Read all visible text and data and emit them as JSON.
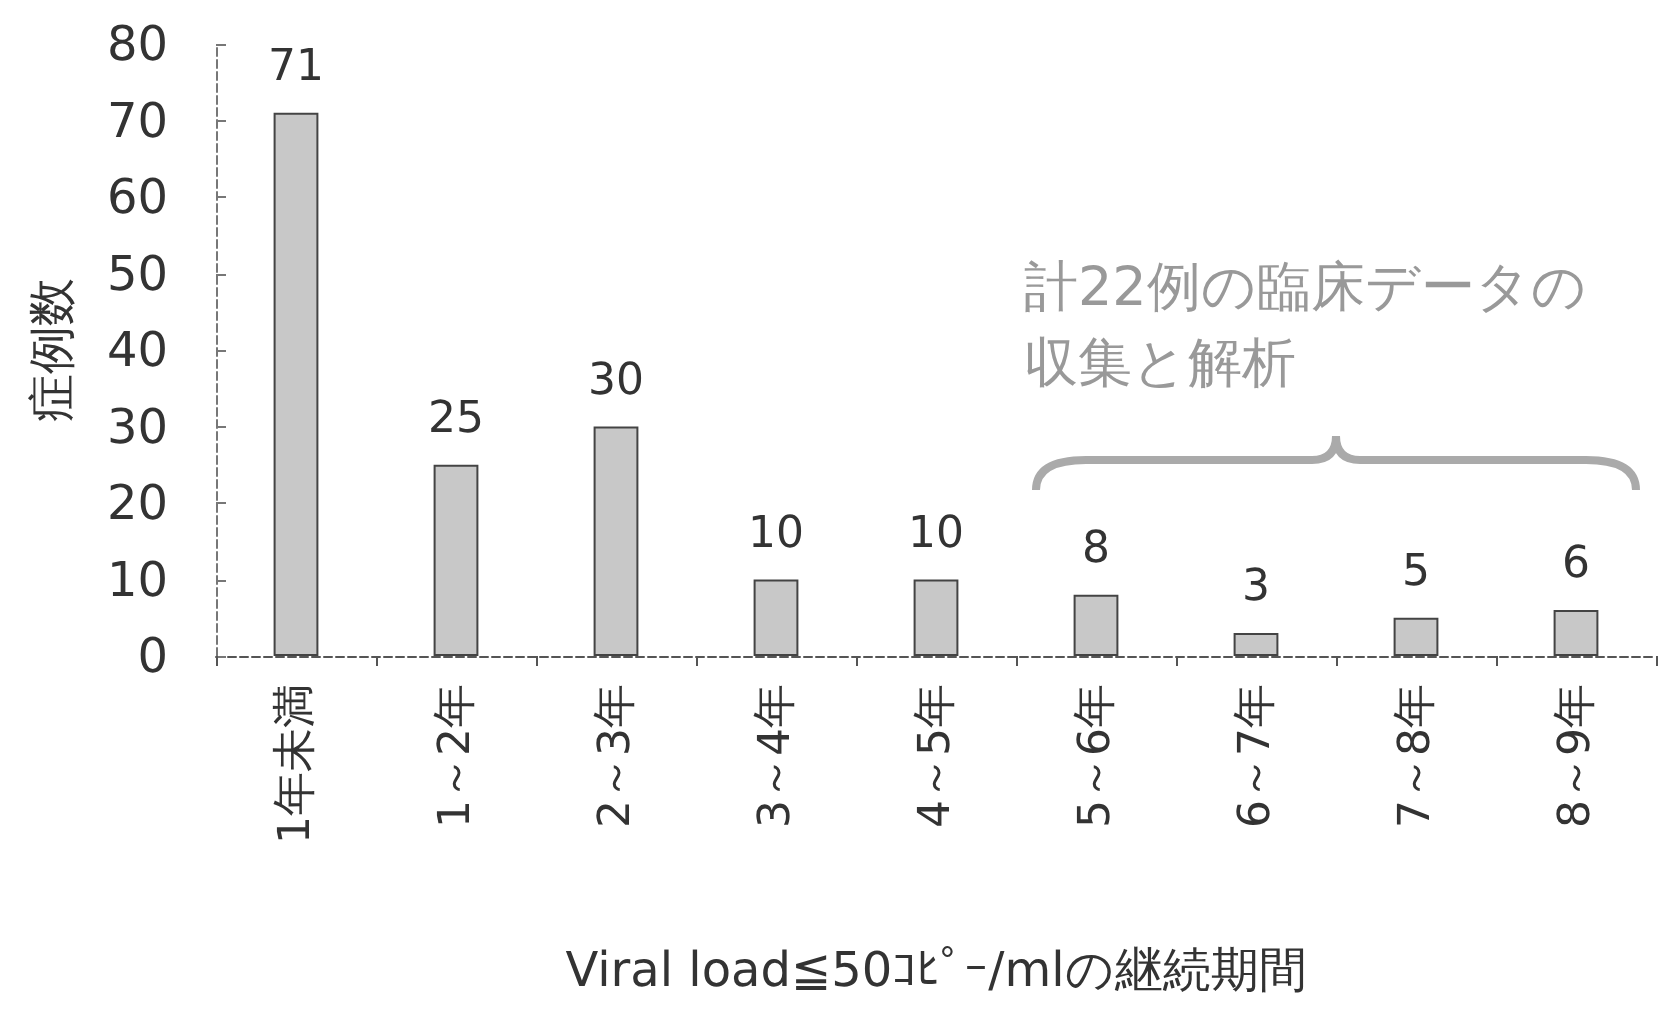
{
  "chart_data": {
    "type": "bar",
    "xlabel": "Viral load≦50ｺﾋﾟｰ/mlの継続期間",
    "ylabel": "症例数",
    "categories": [
      "1年未満",
      "1～2年",
      "2～3年",
      "3～4年",
      "4～5年",
      "5～6年",
      "6～7年",
      "7～8年",
      "8～9年"
    ],
    "values": [
      71,
      25,
      30,
      10,
      10,
      8,
      3,
      5,
      6
    ],
    "color": "#c8c8c8",
    "ylim": [
      0,
      80
    ],
    "yticks": [
      0,
      10,
      20,
      30,
      40,
      50,
      60,
      70,
      80
    ],
    "data_labels": true,
    "annotations": [
      "計22例の臨床データの収集と解析"
    ]
  }
}
